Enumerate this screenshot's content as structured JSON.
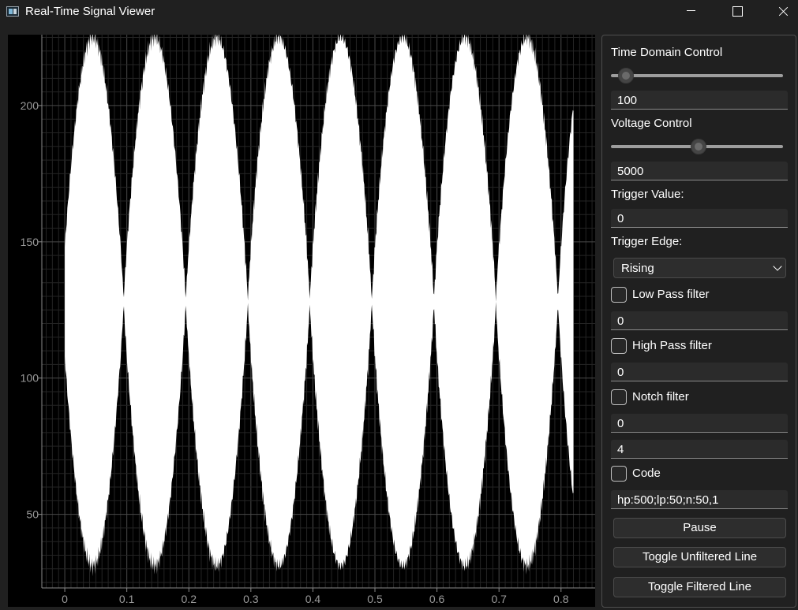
{
  "window": {
    "title": "Real-Time Signal Viewer",
    "app_icon": "app-window-icon",
    "controls": [
      "minimize-icon",
      "maximize-icon",
      "close-icon"
    ]
  },
  "plot": {
    "background": "#000000",
    "signal_color": "#ffffff",
    "grid": true,
    "x_ticks": [
      "0",
      "0.1",
      "0.2",
      "0.3",
      "0.4",
      "0.5",
      "0.6",
      "0.7",
      "0.8"
    ],
    "y_ticks": [
      "200",
      "150",
      "100",
      "50"
    ]
  },
  "chart_data": {
    "type": "area",
    "description": "dense filled waveform (envelope)",
    "xlim": [
      -0.037,
      0.855
    ],
    "ylim": [
      23,
      226
    ],
    "center": 128,
    "envelope_min_halfwidth": 0,
    "envelope_max_halfwidth": 97,
    "beat_period": 0.1,
    "first_peak_x": 0.045,
    "last_x": 0.82,
    "grid": true
  },
  "panel": {
    "time_domain": {
      "label": "Time Domain Control",
      "slider_fraction": 0.085,
      "value": "100"
    },
    "voltage": {
      "label": "Voltage Control",
      "slider_fraction": 0.51,
      "value": "5000"
    },
    "trigger_value": {
      "label": "Trigger Value:",
      "value": "0"
    },
    "trigger_edge": {
      "label": "Trigger Edge:",
      "selected": "Rising"
    },
    "low_pass": {
      "label": "Low Pass filter",
      "checked": false,
      "value": "0"
    },
    "high_pass": {
      "label": "High Pass filter",
      "checked": false,
      "value": "0"
    },
    "notch": {
      "label": "Notch filter",
      "checked": false,
      "value": "0",
      "value2": "4"
    },
    "code": {
      "label": "Code",
      "checked": false,
      "value": "hp:500;lp:50;n:50,1"
    },
    "buttons": {
      "pause": "Pause",
      "toggle_unfiltered": "Toggle Unfiltered Line",
      "toggle_filtered": "Toggle Filtered Line"
    }
  }
}
